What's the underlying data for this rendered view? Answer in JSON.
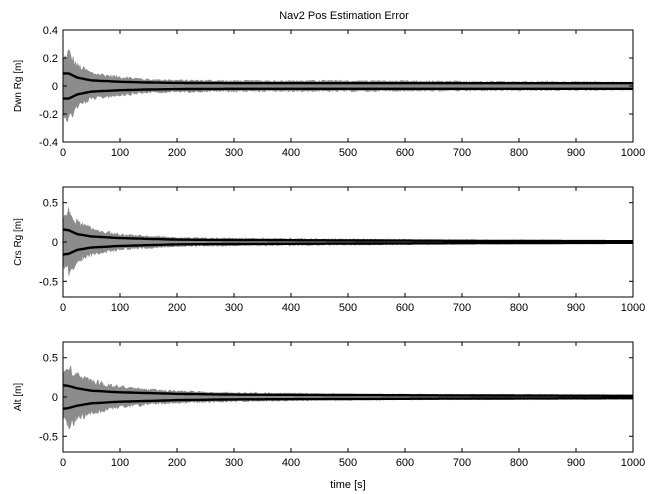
{
  "chart_data": {
    "type": "line",
    "title": "Nav2 Pos Estimation Error",
    "xlabel": "time [s]",
    "xlim": [
      0,
      1000
    ],
    "xticks": [
      0,
      100,
      200,
      300,
      400,
      500,
      600,
      700,
      800,
      900,
      1000
    ],
    "colors": {
      "runs": "#8c8c8c",
      "envelope": "#000000",
      "axes": "#000000",
      "background": "#ffffff"
    },
    "subplots": [
      {
        "ylabel": "Dwn Rg [m]",
        "ylim": [
          -0.4,
          0.4
        ],
        "yticks": [
          -0.4,
          -0.2,
          0,
          0.2,
          0.4
        ],
        "yticklabels": [
          "-0.4",
          "-0.2",
          "0",
          "0.2",
          "0.4"
        ],
        "spread": {
          "t": [
            0,
            10,
            25,
            50,
            100,
            150,
            200,
            300,
            500,
            700,
            1000
          ],
          "value": [
            0.2,
            0.26,
            0.16,
            0.1,
            0.07,
            0.05,
            0.045,
            0.04,
            0.04,
            0.035,
            0.03
          ]
        },
        "envelope": {
          "t": [
            0,
            10,
            25,
            50,
            100,
            150,
            200,
            300,
            500,
            700,
            1000
          ],
          "value": [
            0.09,
            0.09,
            0.06,
            0.04,
            0.03,
            0.025,
            0.022,
            0.02,
            0.02,
            0.02,
            0.02
          ]
        }
      },
      {
        "ylabel": "Crs Rg [m]",
        "ylim": [
          -0.7,
          0.7
        ],
        "yticks": [
          -0.5,
          0,
          0.5
        ],
        "yticklabels": [
          "-0.5",
          "0",
          "0.5"
        ],
        "spread": {
          "t": [
            0,
            10,
            25,
            50,
            100,
            150,
            200,
            300,
            500,
            700,
            1000
          ],
          "value": [
            0.3,
            0.42,
            0.27,
            0.18,
            0.1,
            0.08,
            0.06,
            0.05,
            0.04,
            0.03,
            0.02
          ]
        },
        "envelope": {
          "t": [
            0,
            10,
            25,
            50,
            100,
            150,
            200,
            300,
            500,
            700,
            1000
          ],
          "value": [
            0.16,
            0.15,
            0.1,
            0.07,
            0.05,
            0.04,
            0.03,
            0.025,
            0.02,
            0.015,
            0.01
          ]
        }
      },
      {
        "ylabel": "Alt [m]",
        "ylim": [
          -0.7,
          0.7
        ],
        "yticks": [
          -0.5,
          0,
          0.5
        ],
        "yticklabels": [
          "-0.5",
          "0",
          "0.5"
        ],
        "spread": {
          "t": [
            0,
            10,
            25,
            50,
            100,
            150,
            200,
            300,
            500,
            700,
            1000
          ],
          "value": [
            0.32,
            0.4,
            0.3,
            0.22,
            0.14,
            0.1,
            0.08,
            0.06,
            0.04,
            0.035,
            0.03
          ]
        },
        "envelope": {
          "t": [
            0,
            10,
            25,
            50,
            100,
            150,
            200,
            300,
            500,
            700,
            1000
          ],
          "value": [
            0.15,
            0.14,
            0.11,
            0.08,
            0.06,
            0.05,
            0.04,
            0.03,
            0.025,
            0.02,
            0.015
          ]
        }
      }
    ]
  }
}
